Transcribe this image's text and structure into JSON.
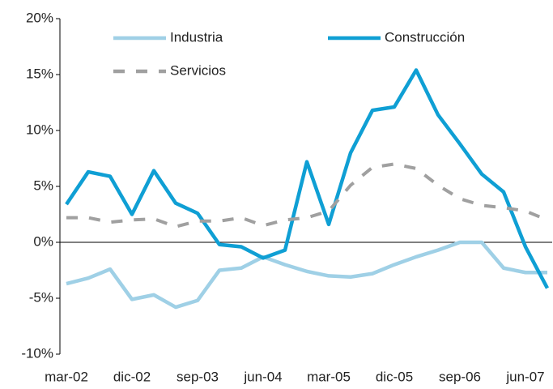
{
  "chart_data": {
    "type": "line",
    "categories": [
      "mar-02",
      null,
      null,
      "dic-02",
      null,
      null,
      "sep-03",
      null,
      null,
      "jun-04",
      null,
      null,
      "mar-05",
      null,
      null,
      "dic-05",
      null,
      null,
      "sep-06",
      null,
      null,
      "jun-07",
      null
    ],
    "series": [
      {
        "name": "Industria",
        "color": "#9fd0e6",
        "dashed": false,
        "values": [
          -3.7,
          -3.2,
          -2.4,
          -5.1,
          -4.7,
          -5.8,
          -5.2,
          -2.5,
          -2.3,
          -1.3,
          -2.0,
          -2.6,
          -3.0,
          -3.1,
          -2.8,
          -2.0,
          -1.3,
          -0.7,
          0.0,
          0.0,
          -2.3,
          -2.7,
          -2.7
        ]
      },
      {
        "name": "Construcción",
        "color": "#0f9fd4",
        "dashed": false,
        "values": [
          3.4,
          6.3,
          5.9,
          2.5,
          6.4,
          3.5,
          2.6,
          -0.2,
          -0.4,
          -1.4,
          -0.7,
          7.2,
          1.6,
          8.0,
          11.8,
          12.1,
          15.4,
          11.4,
          8.8,
          6.1,
          4.5,
          -0.4,
          -4.1
        ]
      },
      {
        "name": "Servicios",
        "color": "#a0a0a0",
        "dashed": true,
        "values": [
          2.2,
          2.2,
          1.8,
          2.0,
          2.1,
          1.4,
          1.9,
          1.9,
          2.2,
          1.5,
          2.0,
          2.2,
          2.8,
          5.1,
          6.7,
          7.0,
          6.6,
          5.1,
          3.9,
          3.3,
          3.1,
          2.8,
          2.0
        ]
      }
    ],
    "ylim": [
      -10,
      20
    ],
    "yticks": [
      {
        "value": -10,
        "label": "-10%"
      },
      {
        "value": -5,
        "label": "-5%"
      },
      {
        "value": 0,
        "label": "0%"
      },
      {
        "value": 5,
        "label": "5%"
      },
      {
        "value": 10,
        "label": "10%"
      },
      {
        "value": 15,
        "label": "15%"
      },
      {
        "value": 20,
        "label": "20%"
      }
    ],
    "grid": false
  }
}
